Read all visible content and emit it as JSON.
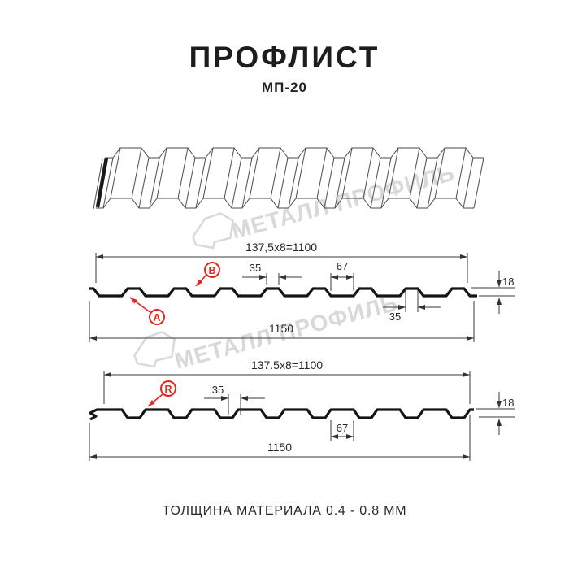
{
  "page": {
    "title": "ПРОФЛИСТ",
    "subtitle": "МП-20",
    "footer": "ТОЛЩИНА МАТЕРИАЛА 0.4 - 0.8 ММ"
  },
  "watermark": {
    "brand": "МЕТАЛЛ ПРОФИЛЬ"
  },
  "colors": {
    "accent_red": "#e8241f",
    "drawing_line": "#3a3a3a",
    "profile_line": "#141414",
    "watermark_gray": "#d9d9d9",
    "text": "#1d1d1d"
  },
  "section_top": {
    "pitch": "137,5x8=1100",
    "rib_top_width": "35",
    "valley_width": "67",
    "height": "18",
    "rib_base_width": "35",
    "overall_width": "1150",
    "label_a": "A",
    "label_b": "B"
  },
  "section_bottom": {
    "pitch": "137.5x8=1100",
    "rib_width": "35",
    "valley_width": "67",
    "height": "18",
    "overall_width": "1150",
    "label_r": "R"
  }
}
